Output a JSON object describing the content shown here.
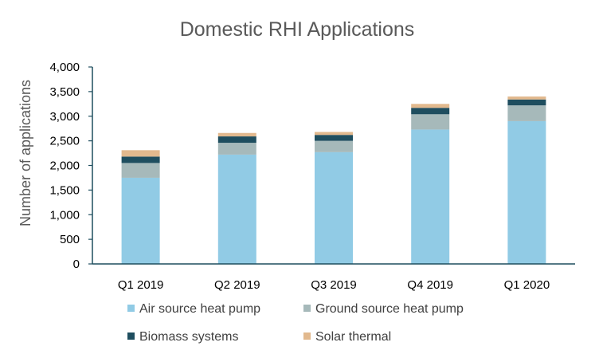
{
  "chart_data": {
    "type": "bar",
    "stacked": true,
    "title": "Domestic RHI Applications",
    "xlabel": "",
    "ylabel": "Number of applications",
    "ylim": [
      0,
      4000
    ],
    "yticks": [
      "0",
      "500",
      "1,000",
      "1,500",
      "2,000",
      "2,500",
      "3,000",
      "3,500",
      "4,000"
    ],
    "categories": [
      "Q1 2019",
      "Q2 2019",
      "Q3 2019",
      "Q4 2019",
      "Q1 2020"
    ],
    "series": [
      {
        "name": "Air source heat pump",
        "color": "#91cbe5",
        "values": [
          1750,
          2220,
          2270,
          2730,
          2900
        ]
      },
      {
        "name": "Ground source heat pump",
        "color": "#a6b9ba",
        "values": [
          300,
          240,
          230,
          310,
          320
        ]
      },
      {
        "name": "Biomass systems",
        "color": "#1f4e5f",
        "values": [
          130,
          130,
          120,
          130,
          120
        ]
      },
      {
        "name": "Solar thermal",
        "color": "#e2b98e",
        "values": [
          130,
          70,
          60,
          80,
          60
        ]
      }
    ],
    "grid": false,
    "legend": "bottom"
  }
}
